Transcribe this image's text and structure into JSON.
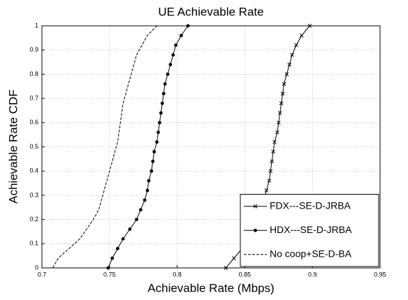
{
  "chart_data": {
    "type": "line",
    "title": "UE Achievable Rate",
    "x_label": "Achievable Rate (Mbps)",
    "y_label": "Achievable Rate CDF",
    "xlim": [
      0.7,
      0.95
    ],
    "xticks": [
      0.7,
      0.75,
      0.8,
      0.85,
      0.9,
      0.95
    ],
    "ylim": [
      0,
      1
    ],
    "yticks": [
      0,
      0.1,
      0.2,
      0.3,
      0.4,
      0.5,
      0.6,
      0.7,
      0.8,
      0.9,
      1
    ],
    "grid": true,
    "legend": "lower right",
    "series": [
      {
        "name": "FDX---SE-D-JRBA",
        "color": "#000000",
        "marker": "x",
        "linestyle": "solid",
        "x": [
          0.836,
          0.842,
          0.848,
          0.853,
          0.857,
          0.86,
          0.862,
          0.864,
          0.866,
          0.868,
          0.869,
          0.87,
          0.871,
          0.872,
          0.874,
          0.875,
          0.876,
          0.877,
          0.878,
          0.879,
          0.881,
          0.883,
          0.885,
          0.888,
          0.892,
          0.898
        ],
        "values": [
          0,
          0.04,
          0.08,
          0.12,
          0.16,
          0.2,
          0.24,
          0.28,
          0.32,
          0.36,
          0.4,
          0.44,
          0.48,
          0.52,
          0.56,
          0.6,
          0.64,
          0.68,
          0.72,
          0.76,
          0.8,
          0.84,
          0.88,
          0.92,
          0.96,
          1
        ]
      },
      {
        "name": "HDX---SE-D-JRBA",
        "color": "#000000",
        "marker": "dot",
        "linestyle": "solid",
        "x": [
          0.749,
          0.752,
          0.756,
          0.76,
          0.765,
          0.77,
          0.773,
          0.776,
          0.778,
          0.779,
          0.781,
          0.782,
          0.783,
          0.785,
          0.786,
          0.787,
          0.788,
          0.789,
          0.79,
          0.791,
          0.793,
          0.795,
          0.797,
          0.799,
          0.803,
          0.808
        ],
        "values": [
          0,
          0.04,
          0.08,
          0.12,
          0.16,
          0.2,
          0.24,
          0.28,
          0.32,
          0.36,
          0.4,
          0.44,
          0.48,
          0.52,
          0.56,
          0.6,
          0.64,
          0.68,
          0.72,
          0.76,
          0.8,
          0.84,
          0.88,
          0.92,
          0.96,
          1
        ]
      },
      {
        "name": "No coop+SE-D-BA",
        "color": "#000000",
        "marker": "none",
        "linestyle": "dashed",
        "x": [
          0.708,
          0.712,
          0.72,
          0.728,
          0.733,
          0.738,
          0.742,
          0.744,
          0.746,
          0.748,
          0.75,
          0.752,
          0.754,
          0.756,
          0.757,
          0.758,
          0.759,
          0.76,
          0.762,
          0.764,
          0.766,
          0.768,
          0.77,
          0.774,
          0.778,
          0.785
        ],
        "values": [
          0,
          0.04,
          0.08,
          0.12,
          0.16,
          0.2,
          0.24,
          0.28,
          0.32,
          0.36,
          0.4,
          0.44,
          0.48,
          0.52,
          0.56,
          0.6,
          0.64,
          0.68,
          0.72,
          0.76,
          0.8,
          0.84,
          0.88,
          0.92,
          0.96,
          1
        ]
      }
    ]
  }
}
